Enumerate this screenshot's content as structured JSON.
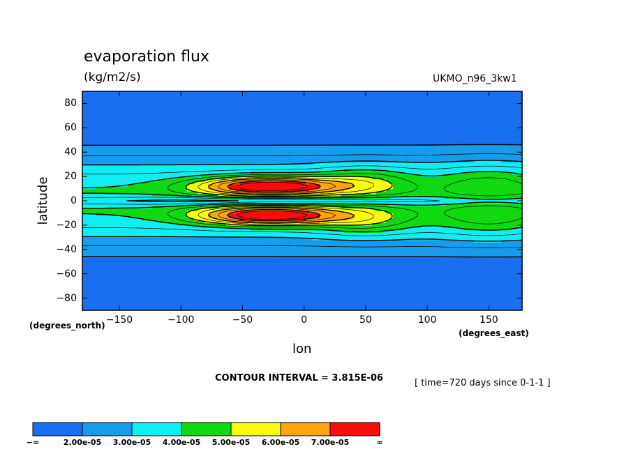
{
  "chart_data": {
    "type": "heatmap",
    "title": "evaporation flux",
    "units": "(kg/m2/s)",
    "dataset": "UKMO_n96_3kw1",
    "xlabel": "lon",
    "ylabel": "latitude",
    "x_axis_units": "(degrees_east)",
    "y_axis_units": "(degrees_north)",
    "xlim": [
      -180,
      177
    ],
    "ylim": [
      -90,
      90
    ],
    "x_ticks": [
      -150,
      -100,
      -50,
      0,
      50,
      100,
      150
    ],
    "y_ticks": [
      -80,
      -60,
      -40,
      -20,
      0,
      20,
      40,
      60,
      80
    ],
    "x_tick_labels": [
      "−150",
      "−100",
      "−50",
      "0",
      "50",
      "100",
      "150"
    ],
    "y_tick_labels": [
      "−80",
      "−60",
      "−40",
      "−20",
      "0",
      "20",
      "40",
      "60",
      "80"
    ],
    "contour_interval_text": "CONTOUR INTERVAL = 3.815E-06",
    "time_text": "[ time=720 days since 0-1-1 ]",
    "legend": {
      "placement": "bottom",
      "colors": [
        "#1a6ef0",
        "#169ceb",
        "#11eef3",
        "#11d911",
        "#fbfb0f",
        "#fca50e",
        "#fb0c0c"
      ],
      "labels": [
        "−∞",
        "2.00e-05",
        "3.00e-05",
        "4.00e-05",
        "5.00e-05",
        "6.00e-05",
        "7.00e-05",
        "∞"
      ]
    },
    "levels": [
      2e-05,
      3e-05,
      4e-05,
      5e-05,
      6e-05,
      7e-05
    ],
    "contour_lines": "black",
    "field_description": "zonally banded field symmetric about the equator; maxima (>7.00e-05) near ±12° latitude between about −90° and 40° longitude; values below 2.00e-05 poleward of about ±40°"
  }
}
